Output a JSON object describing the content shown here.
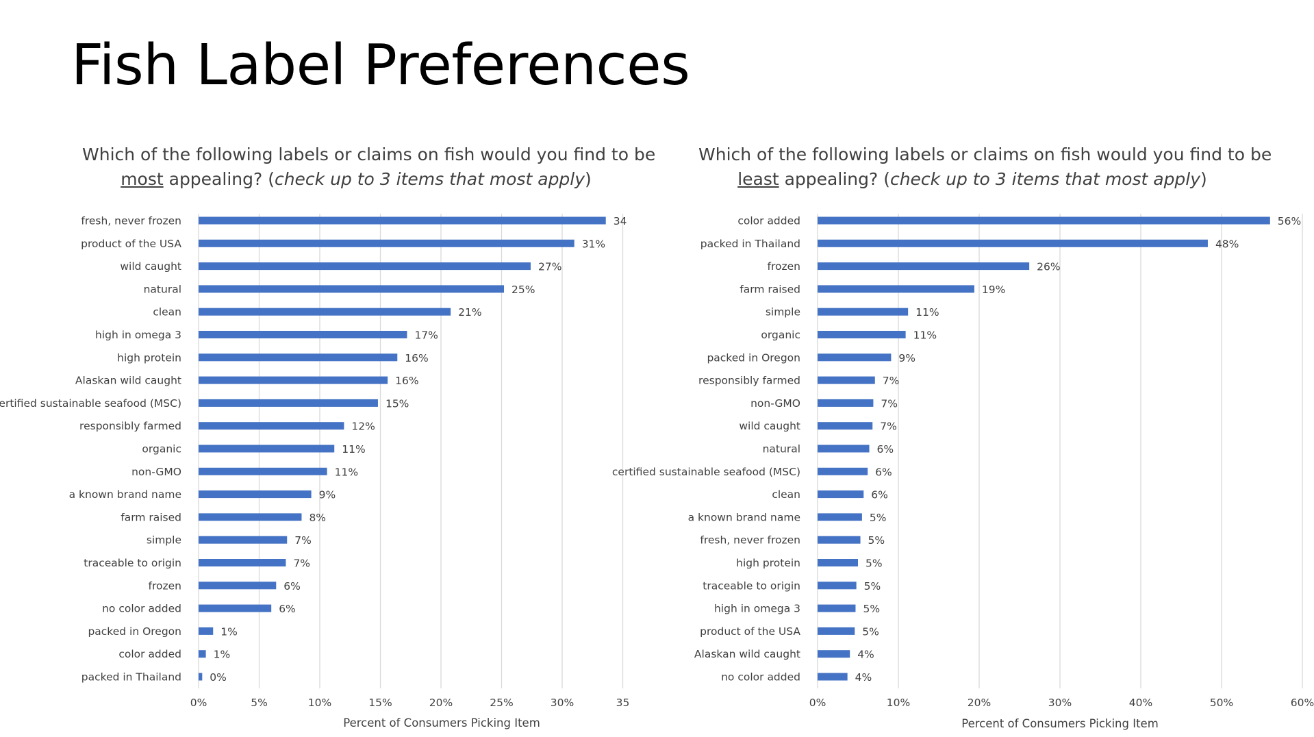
{
  "page": {
    "title": "Fish Label Preferences"
  },
  "questions": {
    "left": {
      "line1": "Which of the following labels or claims on fish would you find to be",
      "emph": "most",
      "after_emph": " appealing? (",
      "instruction": "check up to 3 items that most apply",
      "close": ")"
    },
    "right": {
      "line1": "Which of the following labels or claims on fish would you find to be",
      "emph": "least",
      "after_emph": " appealing? (",
      "instruction": "check up to 3 items that most apply",
      "close": ")"
    }
  },
  "colors": {
    "bar": "#4472C4",
    "grid": "#D9D9D9",
    "text": "#404040"
  },
  "chart_data": [
    {
      "type": "bar",
      "orientation": "horizontal",
      "title": "",
      "xlabel": "Percent of Consumers Picking Item",
      "ylabel": "",
      "xlim": [
        0,
        35
      ],
      "xticks": [
        0,
        5,
        10,
        15,
        20,
        25,
        30,
        35
      ],
      "xtick_labels": [
        "0%",
        "5%",
        "10%",
        "15%",
        "20%",
        "25%",
        "30%",
        "35"
      ],
      "grid": true,
      "categories": [
        "fresh, never frozen",
        "product of the USA",
        "wild caught",
        "natural",
        "clean",
        "high in omega 3",
        "high protein",
        "Alaskan wild caught",
        "certified sustainable seafood (MSC)",
        "responsibly farmed",
        "organic",
        "non-GMO",
        "a known brand name",
        "farm raised",
        "simple",
        "traceable to origin",
        "frozen",
        "no color added",
        "packed in Oregon",
        "color added",
        "packed in Thailand"
      ],
      "values": [
        33.6,
        31.0,
        27.4,
        25.2,
        20.8,
        17.2,
        16.4,
        15.6,
        14.8,
        12.0,
        11.2,
        10.6,
        9.3,
        8.5,
        7.3,
        7.2,
        6.4,
        6.0,
        1.2,
        0.6,
        0.3
      ],
      "data_labels": [
        "34",
        "31%",
        "27%",
        "25%",
        "21%",
        "17%",
        "16%",
        "16%",
        "15%",
        "12%",
        "11%",
        "11%",
        "9%",
        "8%",
        "7%",
        "7%",
        "6%",
        "6%",
        "1%",
        "1%",
        "0%"
      ]
    },
    {
      "type": "bar",
      "orientation": "horizontal",
      "title": "",
      "xlabel": "Percent of Consumers Picking Item",
      "ylabel": "",
      "xlim": [
        0,
        60
      ],
      "xticks": [
        0,
        10,
        20,
        30,
        40,
        50,
        60
      ],
      "xtick_labels": [
        "0%",
        "10%",
        "20%",
        "30%",
        "40%",
        "50%",
        "60%"
      ],
      "grid": true,
      "categories": [
        "color added",
        "packed in Thailand",
        "frozen",
        "farm raised",
        "simple",
        "organic",
        "packed in Oregon",
        "responsibly farmed",
        "non-GMO",
        "wild caught",
        "natural",
        "certified sustainable seafood (MSC)",
        "clean",
        "a known brand name",
        "fresh, never frozen",
        "high protein",
        "traceable to origin",
        "high in omega 3",
        "product of the USA",
        "Alaskan wild caught",
        "no color added"
      ],
      "values": [
        56.0,
        48.3,
        26.2,
        19.4,
        11.2,
        10.9,
        9.1,
        7.1,
        6.9,
        6.8,
        6.4,
        6.2,
        5.7,
        5.5,
        5.3,
        5.0,
        4.8,
        4.7,
        4.6,
        4.0,
        3.7
      ],
      "data_labels": [
        "56%",
        "48%",
        "26%",
        "19%",
        "11%",
        "11%",
        "9%",
        "7%",
        "7%",
        "7%",
        "6%",
        "6%",
        "6%",
        "5%",
        "5%",
        "5%",
        "5%",
        "5%",
        "5%",
        "4%",
        "4%"
      ]
    }
  ]
}
